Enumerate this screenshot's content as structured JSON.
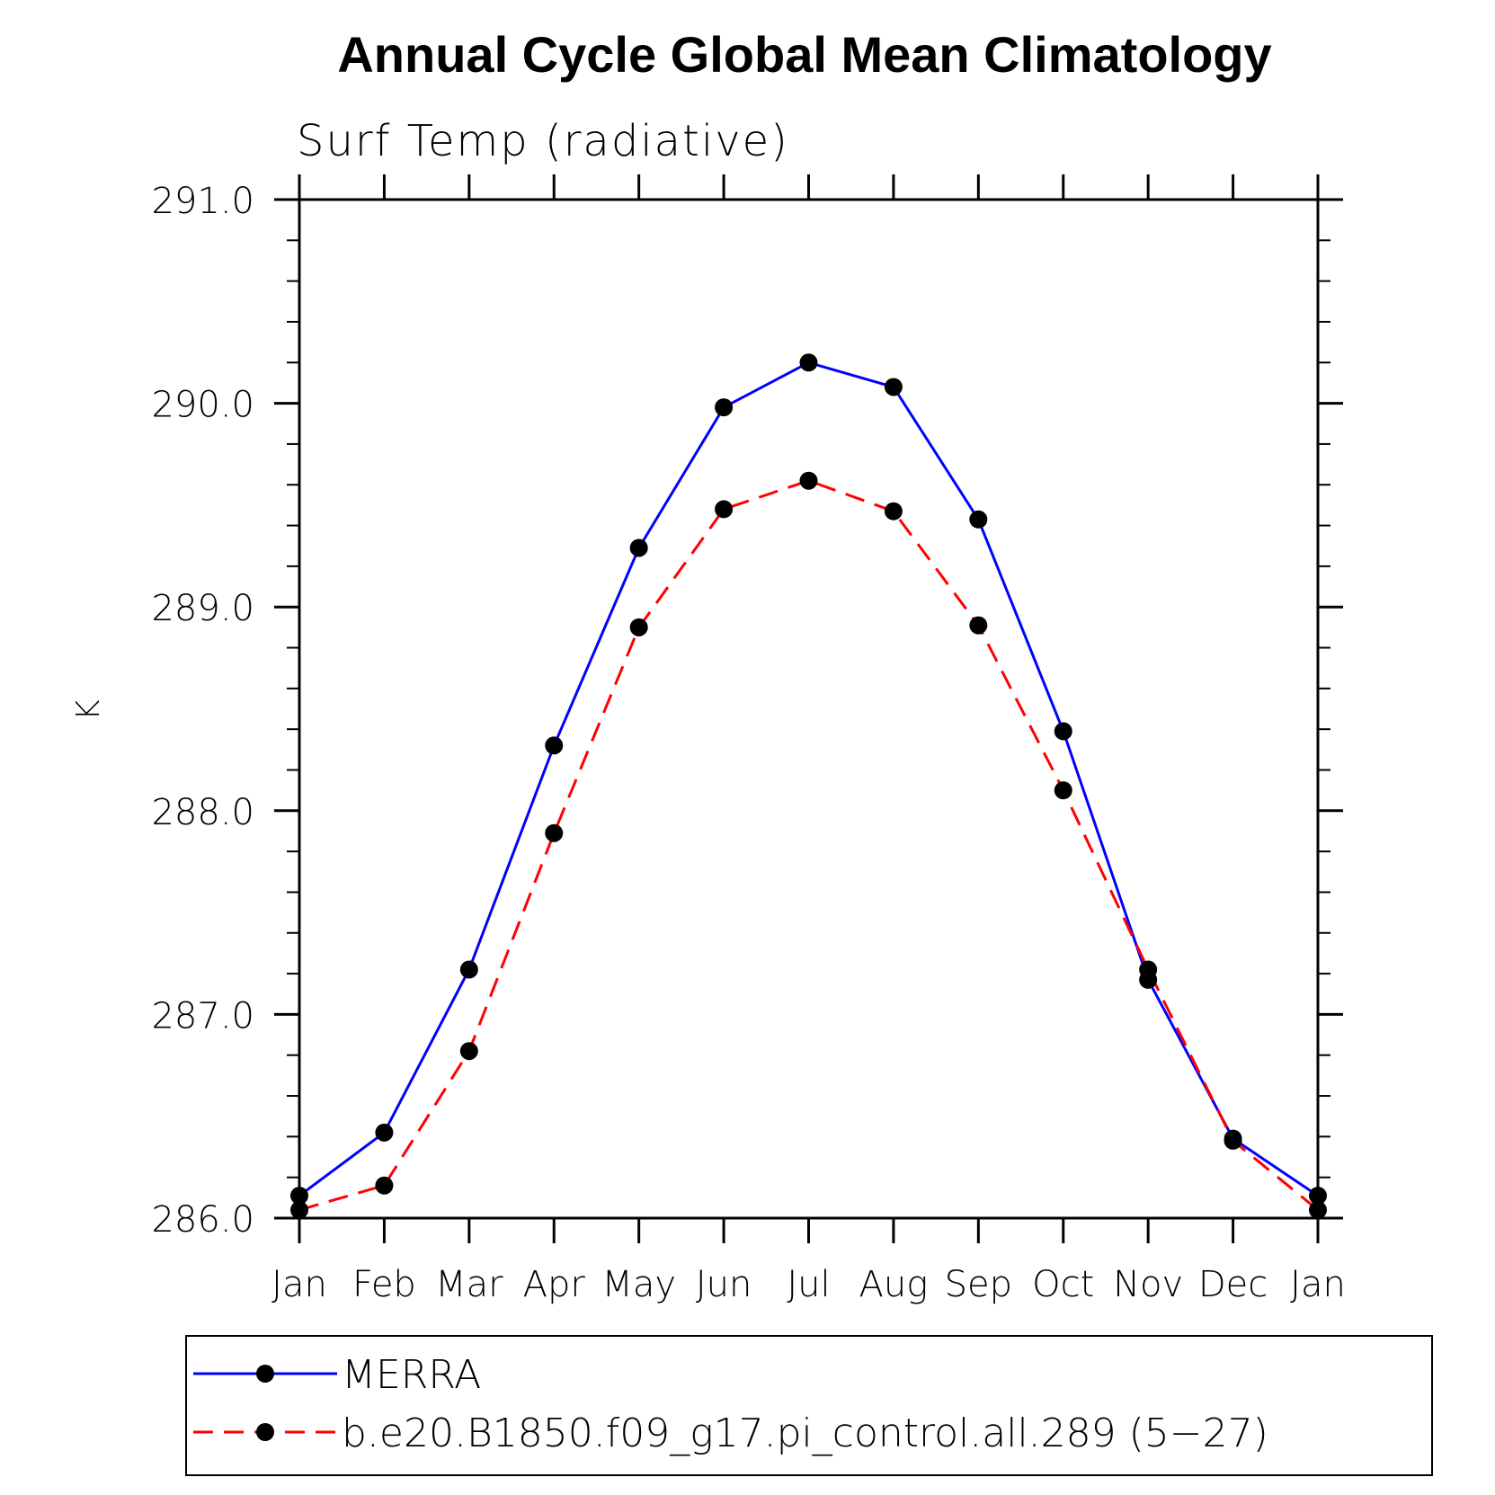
{
  "chart_data": {
    "type": "line",
    "title": "Annual Cycle Global Mean Climatology",
    "subtitle": "Surf Temp (radiative)",
    "xlabel": "",
    "ylabel": "K",
    "categories": [
      "Jan",
      "Feb",
      "Mar",
      "Apr",
      "May",
      "Jun",
      "Jul",
      "Aug",
      "Sep",
      "Oct",
      "Nov",
      "Dec",
      "Jan"
    ],
    "ylim": [
      286.0,
      291.0
    ],
    "yticks": [
      "286.0",
      "287.0",
      "288.0",
      "289.0",
      "290.0",
      "291.0"
    ],
    "grid": false,
    "legend_placement": "bottom",
    "series": [
      {
        "name": "MERRA",
        "color": "#0000ff",
        "dash": "solid",
        "marker": "filled-circle",
        "values": [
          286.11,
          286.42,
          287.22,
          288.32,
          289.29,
          289.98,
          290.2,
          290.08,
          289.43,
          288.39,
          287.17,
          286.39,
          286.11
        ]
      },
      {
        "name": "b.e20.B1850.f09_g17.pi_control.all.289 (5−27)",
        "color": "#ff0000",
        "dash": "dashed",
        "marker": "filled-circle",
        "values": [
          286.04,
          286.16,
          286.82,
          287.89,
          288.9,
          289.48,
          289.62,
          289.47,
          288.91,
          288.1,
          287.22,
          286.38,
          286.04
        ]
      }
    ]
  }
}
